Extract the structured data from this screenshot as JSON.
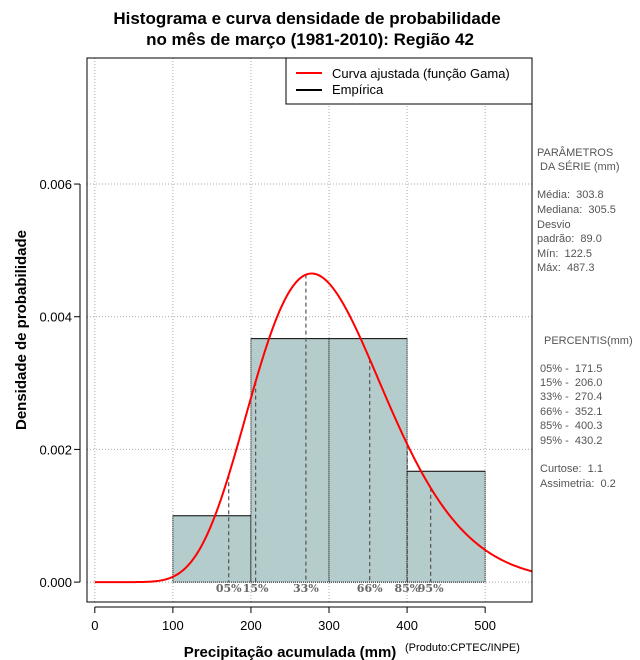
{
  "chart_data": {
    "type": "bar",
    "title_line1": "Histograma e curva densidade de probabilidade",
    "title_line2": "no mês de março (1981-2010): Região 42",
    "xlabel": "Precipitação acumulada (mm)",
    "ylabel": "Densidade de probabilidade",
    "credit": "(Produto:CPTEC/INPE)",
    "xlim": [
      -10,
      560
    ],
    "ylim": [
      -0.0003,
      0.0079
    ],
    "grid": true,
    "x_ticks": [
      0,
      100,
      200,
      300,
      400,
      500
    ],
    "x_tick_labels": [
      "0",
      "100",
      "200",
      "300",
      "400",
      "500"
    ],
    "y_ticks": [
      0.0,
      0.002,
      0.004,
      0.006
    ],
    "y_tick_labels": [
      "0.000",
      "0.002",
      "0.004",
      "0.006"
    ],
    "histogram": {
      "name": "Empírica",
      "bin_edges": [
        100,
        200,
        300,
        400,
        500
      ],
      "densities": [
        0.001,
        0.00367,
        0.00367,
        0.00167
      ],
      "fill": "#b5cccc",
      "edge": "#000000"
    },
    "gamma_curve": {
      "name": "Curva ajustada (função Gama)",
      "mean": 303.8,
      "sd": 89.0,
      "color": "#ff0000"
    },
    "legend": {
      "position": "top-right",
      "entries": [
        {
          "label": "Curva ajustada (função Gama)",
          "color": "#ff0000"
        },
        {
          "label": "Empírica",
          "color": "#000000"
        }
      ]
    },
    "percentile_markers": [
      {
        "label": "05%",
        "value": 171.5
      },
      {
        "label": "15%",
        "value": 206.0
      },
      {
        "label": "33%",
        "value": 270.4
      },
      {
        "label": "66%",
        "value": 352.1
      },
      {
        "label": "85%",
        "value": 400.3
      },
      {
        "label": "95%",
        "value": 430.2
      }
    ]
  },
  "side_panel": {
    "params_title_1": "PARÂMETROS",
    "params_title_2": " DA SÉRIE (mm)",
    "media": "Média:  303.8",
    "mediana": "Mediana:  305.5",
    "desvio_1": "Desvio",
    "desvio_2": "padrão:  89.0",
    "min": "Mín:  122.5",
    "max": "Máx:  487.3",
    "percentis_title": "PERCENTIS(mm)",
    "p05": "05% -  171.5",
    "p15": "15% -  206.0",
    "p33": "33% -  270.4",
    "p66": "66% -  352.1",
    "p85": "85% -  400.3",
    "p95": "95% -  430.2",
    "curtose": "Curtose:  1.1",
    "assimetria": "Assimetria:  0.2"
  }
}
